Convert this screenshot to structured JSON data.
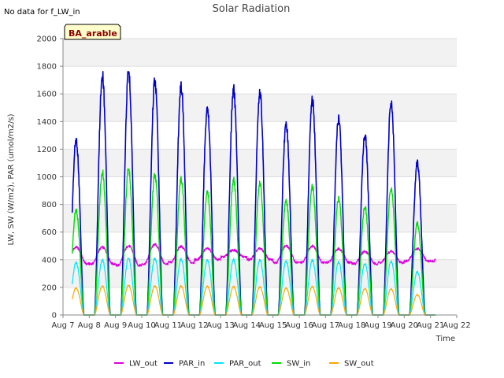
{
  "page": {
    "no_data_note": "No data for f_LW_in",
    "badge": "BA_arable"
  },
  "chart_data": {
    "type": "line",
    "title": "Solar Radiation",
    "xlabel": "Time",
    "ylabel": "LW, SW (W/m2), PAR (umol/m2/s)",
    "xlim": [
      7,
      22
    ],
    "ylim": [
      0,
      2000
    ],
    "x_ticks": [
      7,
      8,
      9,
      10,
      11,
      12,
      13,
      14,
      15,
      16,
      17,
      18,
      19,
      20,
      21,
      22
    ],
    "x_tick_labels": [
      "Aug 7",
      "Aug 8",
      "Aug 9",
      "Aug 10",
      "Aug 11",
      "Aug 12",
      "Aug 13",
      "Aug 14",
      "Aug 15",
      "Aug 16",
      "Aug 17",
      "Aug 18",
      "Aug 19",
      "Aug 20",
      "Aug 21",
      "Aug 22"
    ],
    "y_ticks": [
      0,
      200,
      400,
      600,
      800,
      1000,
      1200,
      1400,
      1600,
      1800,
      2000
    ],
    "grid": "horizontal bands",
    "legend_position": "bottom",
    "days": [
      7,
      8,
      9,
      10,
      11,
      12,
      13,
      14,
      15,
      16,
      17,
      18,
      19,
      20,
      21
    ],
    "series": [
      {
        "name": "LW_out",
        "color": "#dd00dd",
        "kind": "lw",
        "width": 1.2,
        "night": [
          370,
          370,
          360,
          370,
          380,
          400,
          420,
          400,
          380,
          380,
          380,
          370,
          380,
          390,
          390
        ],
        "peaks": [
          490,
          490,
          500,
          510,
          495,
          480,
          470,
          480,
          500,
          500,
          480,
          460,
          460,
          480,
          490
        ]
      },
      {
        "name": "PAR_in",
        "color": "#0000cc",
        "kind": "day",
        "width": 1.6,
        "peaks": [
          1300,
          1780,
          1800,
          1740,
          1700,
          1540,
          1670,
          1660,
          1420,
          1590,
          1450,
          1330,
          1580,
          1130
        ]
      },
      {
        "name": "PAR_out",
        "color": "#00e5ff",
        "kind": "day",
        "width": 1.2,
        "peaks": [
          390,
          410,
          420,
          420,
          415,
          410,
          410,
          410,
          400,
          405,
          390,
          380,
          400,
          320
        ]
      },
      {
        "name": "SW_in",
        "color": "#00dd00",
        "kind": "day",
        "width": 1.4,
        "peaks": [
          780,
          1060,
          1080,
          1040,
          1010,
          920,
          1000,
          985,
          850,
          950,
          860,
          800,
          940,
          680
        ]
      },
      {
        "name": "SW_out",
        "color": "#ffa500",
        "kind": "day",
        "width": 1.2,
        "peaks": [
          200,
          215,
          220,
          215,
          215,
          215,
          210,
          210,
          200,
          210,
          200,
          195,
          195,
          150
        ]
      }
    ]
  }
}
